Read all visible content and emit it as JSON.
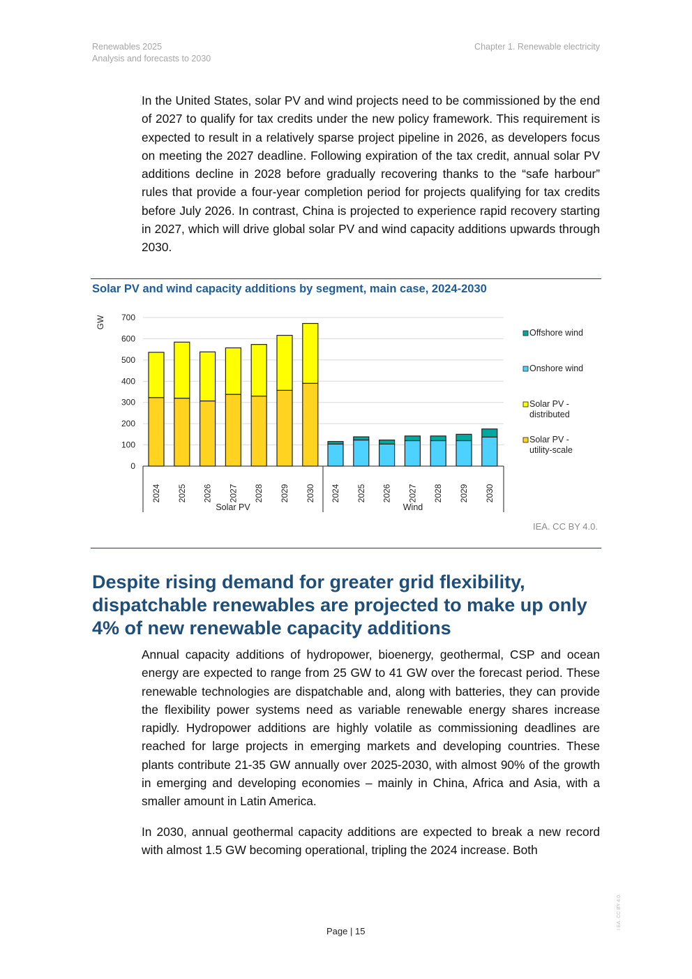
{
  "header": {
    "left_line1": "Renewables 2025",
    "left_line2": "Analysis and forecasts to 2030",
    "right": "Chapter 1. Renewable electricity"
  },
  "paragraphs": [
    "In the United States, solar PV and wind projects need to be commissioned by the end of 2027 to qualify for tax credits under the new policy framework. This requirement is expected to result in a relatively sparse project pipeline in 2026, as developers focus on meeting the 2027 deadline. Following expiration of the tax credit, annual solar PV additions decline in 2028 before gradually recovering thanks to the “safe harbour” rules that provide a four-year completion period for projects qualifying for tax credits before July 2026. In contrast, China is projected to experience rapid recovery starting in 2027, which will drive global solar PV and wind capacity additions upwards through 2030.",
    "Annual capacity additions of hydropower, bioenergy, geothermal, CSP and ocean energy are expected to range from 25 GW to 41 GW over the forecast period. These renewable technologies are dispatchable and, along with batteries, they can provide the flexibility power systems need as variable renewable energy shares increase rapidly. Hydropower additions are highly volatile as commissioning deadlines are reached for large projects in emerging markets and developing countries. These plants contribute 21-35 GW annually over 2025-2030, with almost 90% of the growth in emerging and developing economies – mainly in China, Africa and Asia, with a smaller amount in Latin America.",
    "In 2030, annual geothermal capacity additions are expected to break a new record with almost 1.5 GW becoming operational, tripling the 2024 increase. Both"
  ],
  "section_heading": "Despite rising demand for greater grid flexibility, dispatchable renewables are projected to make up only 4% of new renewable capacity additions",
  "chart_credit": "IEA. CC BY 4.0.",
  "footer": {
    "page_label": "Page | 15",
    "side_credit": "I EA. CC BY 4.0."
  },
  "chart_data": {
    "type": "bar",
    "stacked": true,
    "title": "Solar PV and wind capacity additions by segment, main case, 2024-2030",
    "ylabel": "GW",
    "ylim": [
      0,
      700
    ],
    "yticks": [
      0,
      100,
      200,
      300,
      400,
      500,
      600,
      700
    ],
    "groups": [
      {
        "label": "Solar PV",
        "categories": [
          "2024",
          "2025",
          "2026",
          "2027",
          "2028",
          "2029",
          "2030"
        ]
      },
      {
        "label": "Wind",
        "categories": [
          "2024",
          "2025",
          "2026",
          "2027",
          "2028",
          "2029",
          "2030"
        ]
      }
    ],
    "series": [
      {
        "name": "Solar PV - utility-scale",
        "legend": [
          "Solar PV -",
          "utility-scale"
        ],
        "group": 0,
        "color": "#ffd320",
        "values": [
          323,
          320,
          307,
          338,
          330,
          357,
          390
        ]
      },
      {
        "name": "Solar PV - distributed",
        "legend": [
          "Solar PV -",
          "distributed"
        ],
        "group": 0,
        "color": "#ffff00",
        "values": [
          213,
          264,
          231,
          219,
          243,
          259,
          282
        ]
      },
      {
        "name": "Onshore wind",
        "legend": [
          "Onshore wind"
        ],
        "group": 1,
        "color": "#4dd2ff",
        "values": [
          104,
          123,
          104,
          120,
          120,
          120,
          137
        ]
      },
      {
        "name": "Offshore wind",
        "legend": [
          "Offshore wind"
        ],
        "group": 1,
        "color": "#00a99d",
        "values": [
          12,
          15,
          19,
          22,
          22,
          30,
          38
        ]
      }
    ],
    "grid": true,
    "legend_position": "right"
  }
}
